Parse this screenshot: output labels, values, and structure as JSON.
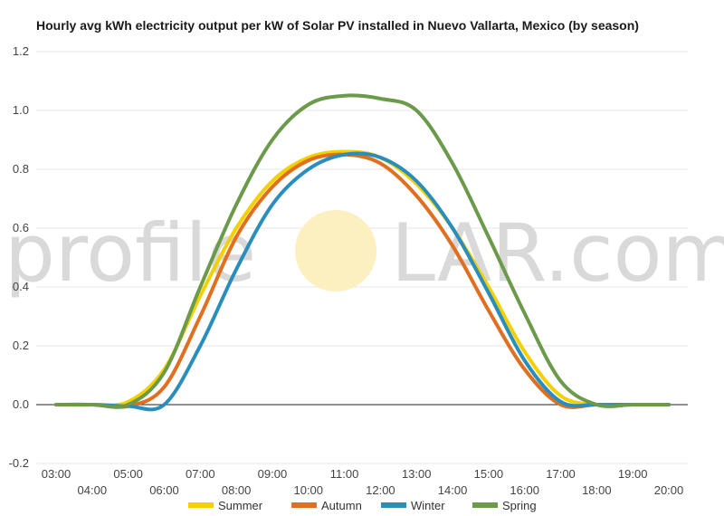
{
  "chart_data": {
    "type": "line",
    "title": "Hourly avg kWh electricity output per kW of Solar PV installed in Nuevo Vallarta, Mexico (by season)",
    "xlabel": "",
    "ylabel": "",
    "ylim": [
      -0.2,
      1.2
    ],
    "yticks": [
      "-0.2",
      "0.0",
      "0.2",
      "0.4",
      "0.6",
      "0.8",
      "1.0",
      "1.2"
    ],
    "x": [
      "03:00",
      "04:00",
      "05:00",
      "06:00",
      "07:00",
      "08:00",
      "09:00",
      "10:00",
      "11:00",
      "12:00",
      "13:00",
      "14:00",
      "15:00",
      "16:00",
      "17:00",
      "18:00",
      "19:00",
      "20:00"
    ],
    "grid": true,
    "legend_position": "bottom",
    "series": [
      {
        "name": "Summer",
        "color": "#F5D000",
        "values": [
          0.0,
          0.0,
          0.01,
          0.12,
          0.37,
          0.6,
          0.76,
          0.84,
          0.86,
          0.84,
          0.75,
          0.6,
          0.4,
          0.18,
          0.03,
          0.0,
          0.0,
          0.0
        ]
      },
      {
        "name": "Autumn",
        "color": "#E06F1F",
        "values": [
          0.0,
          0.0,
          -0.005,
          0.06,
          0.3,
          0.57,
          0.74,
          0.83,
          0.85,
          0.82,
          0.71,
          0.54,
          0.32,
          0.12,
          0.0,
          0.0,
          0.0,
          0.0
        ]
      },
      {
        "name": "Winter",
        "color": "#2A8EBC",
        "values": [
          0.0,
          0.0,
          -0.005,
          0.0,
          0.2,
          0.46,
          0.68,
          0.8,
          0.85,
          0.84,
          0.76,
          0.6,
          0.38,
          0.15,
          0.01,
          0.0,
          0.0,
          0.0
        ]
      },
      {
        "name": "Spring",
        "color": "#6B9A4B",
        "values": [
          0.0,
          0.0,
          0.0,
          0.11,
          0.4,
          0.68,
          0.9,
          1.02,
          1.05,
          1.04,
          1.0,
          0.82,
          0.57,
          0.31,
          0.08,
          0.0,
          0.0,
          0.0
        ]
      }
    ]
  },
  "watermark": {
    "left": "profile",
    "right": "LAR.com",
    "sun_color": "#FCEFC0"
  }
}
